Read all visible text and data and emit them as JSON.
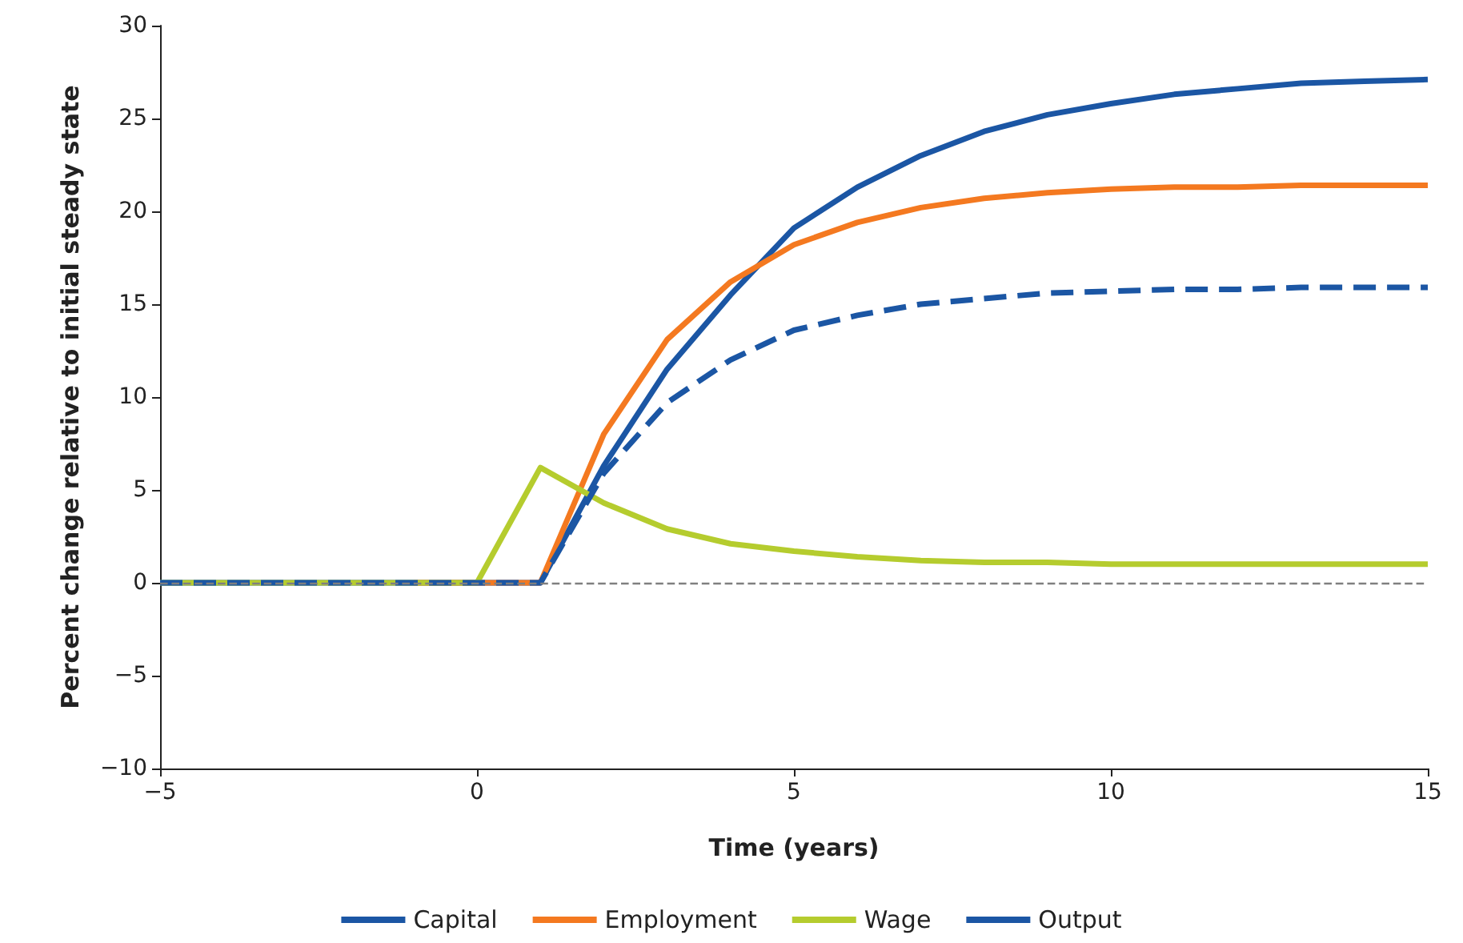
{
  "chart_data": {
    "type": "line",
    "xlabel": "Time (years)",
    "ylabel": "Percent change relative to initial steady state",
    "x": [
      -5,
      -4,
      -3,
      -2,
      -1,
      0,
      1,
      2,
      3,
      4,
      5,
      6,
      7,
      8,
      9,
      10,
      11,
      12,
      13,
      14,
      15
    ],
    "series": [
      {
        "name": "Capital",
        "color": "#1b56a4",
        "line_style": "solid",
        "values": [
          0,
          0,
          0,
          0,
          0,
          0,
          0,
          6.3,
          11.5,
          15.5,
          19.1,
          21.3,
          23.0,
          24.3,
          25.2,
          25.8,
          26.3,
          26.6,
          26.9,
          27.0,
          27.1
        ]
      },
      {
        "name": "Employment",
        "color": "#f47920",
        "line_style": "solid",
        "values": [
          null,
          null,
          null,
          null,
          0,
          0,
          0,
          8.0,
          13.1,
          16.2,
          18.2,
          19.4,
          20.2,
          20.7,
          21.0,
          21.2,
          21.3,
          21.3,
          21.4,
          21.4,
          21.4
        ]
      },
      {
        "name": "Wage",
        "color": "#b5cc2e",
        "line_style": "solid",
        "values": [
          0,
          0,
          0,
          0,
          0,
          0,
          6.2,
          4.3,
          2.9,
          2.1,
          1.7,
          1.4,
          1.2,
          1.1,
          1.1,
          1.0,
          1.0,
          1.0,
          1.0,
          1.0,
          1.0
        ]
      },
      {
        "name": "Output",
        "color": "#1b56a4",
        "line_style": "dashed",
        "values": [
          0,
          0,
          0,
          0,
          0,
          0,
          0,
          5.9,
          9.7,
          12.0,
          13.6,
          14.4,
          15.0,
          15.3,
          15.6,
          15.7,
          15.8,
          15.8,
          15.9,
          15.9,
          15.9
        ]
      }
    ],
    "xlim": [
      -5,
      15
    ],
    "xticks": [
      {
        "value": -5,
        "label": "−5"
      },
      0,
      5,
      10,
      15
    ],
    "ylim": [
      -10,
      30
    ],
    "yticks": [
      {
        "value": -10,
        "label": "−10"
      },
      {
        "value": -5,
        "label": "−5"
      },
      0,
      5,
      10,
      15,
      20,
      25,
      30
    ],
    "ref_lines": [
      {
        "axis": "y",
        "value": 0,
        "label": null,
        "color": "#7f7f7f",
        "line_style": "dashed"
      }
    ],
    "grid": false,
    "legend": "bottom",
    "marker": "none"
  }
}
